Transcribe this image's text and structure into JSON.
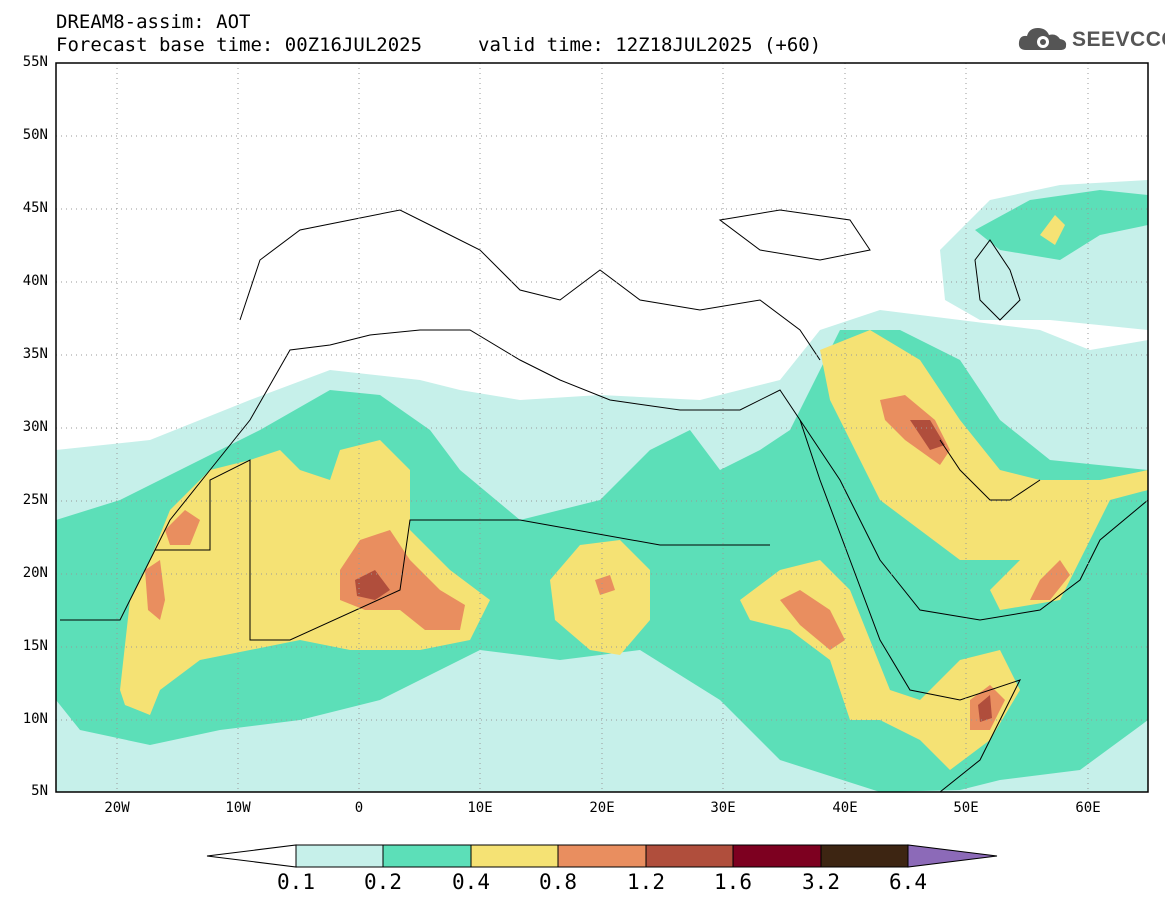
{
  "header": {
    "model_line": "DREAM8-assim: AOT",
    "base_time": "Forecast base time: 00Z16JUL2025",
    "valid_time": "valid time: 12Z18JUL2025 (+60)"
  },
  "logo": {
    "text": "SEEVCCC",
    "icon": "cloud-icon",
    "color": "#555555"
  },
  "axes": {
    "lat_labels": [
      "55N",
      "50N",
      "45N",
      "40N",
      "35N",
      "30N",
      "25N",
      "20N",
      "15N",
      "10N",
      "5N"
    ],
    "lon_labels": [
      "20W",
      "10W",
      "0",
      "10E",
      "20E",
      "30E",
      "40E",
      "50E",
      "60E"
    ],
    "lon_range": [
      -25,
      65
    ],
    "lat_range": [
      5,
      55
    ]
  },
  "colorbar": {
    "levels": [
      "0.1",
      "0.2",
      "0.4",
      "0.8",
      "1.2",
      "1.6",
      "3.2",
      "6.4"
    ],
    "colors": [
      "#c6f0ea",
      "#5cdfb8",
      "#f5e274",
      "#e98e5f",
      "#b04e3c",
      "#7d0020",
      "#3d2512",
      "#8c6ab8"
    ],
    "below_color": "#ffffff"
  }
}
